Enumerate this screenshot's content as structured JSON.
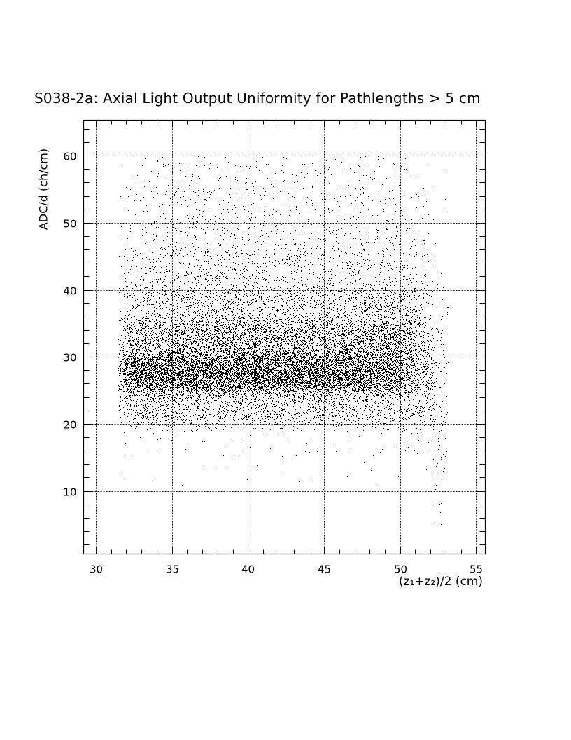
{
  "chart_data": {
    "type": "scatter",
    "title": "S038-2a: Axial Light Output Uniformity for Pathlengths > 5 cm",
    "xlabel": "(z₁+z₂)/2 (cm)",
    "ylabel": "ADC/d (ch/cm)",
    "xlim": [
      29.2,
      55.6
    ],
    "ylim": [
      0.6,
      65.3
    ],
    "xticks": [
      30,
      35,
      40,
      45,
      50,
      55
    ],
    "yticks": [
      10,
      20,
      30,
      40,
      50,
      60
    ],
    "x_minor_step": 1,
    "y_minor_step": 2,
    "grid": true,
    "legend": "none",
    "marker_color": "#000000",
    "density": {
      "description_of_bins": "approximate point counts per (x,y) bin",
      "x_bin_edges": [
        31,
        32,
        33,
        34,
        35,
        36,
        37,
        38,
        39,
        40,
        41,
        42,
        43,
        44,
        45,
        46,
        47,
        48,
        49,
        50,
        51,
        52,
        53
      ],
      "y_bin_edges": [
        5,
        10,
        15,
        20,
        25,
        30,
        35,
        40,
        45,
        50,
        55,
        60
      ],
      "counts": [
        [
          0,
          1,
          3,
          60,
          220,
          80,
          30,
          10,
          5,
          3,
          1
        ],
        [
          0,
          1,
          5,
          180,
          650,
          250,
          90,
          40,
          20,
          12,
          6
        ],
        [
          0,
          1,
          4,
          160,
          700,
          280,
          120,
          55,
          30,
          18,
          10
        ],
        [
          0,
          1,
          4,
          150,
          700,
          290,
          125,
          60,
          35,
          22,
          14
        ],
        [
          0,
          1,
          4,
          150,
          700,
          300,
          130,
          62,
          35,
          22,
          15
        ],
        [
          0,
          1,
          4,
          140,
          690,
          310,
          135,
          65,
          38,
          24,
          16
        ],
        [
          0,
          1,
          4,
          140,
          700,
          320,
          140,
          70,
          40,
          26,
          18
        ],
        [
          0,
          1,
          4,
          140,
          710,
          330,
          145,
          72,
          42,
          26,
          18
        ],
        [
          0,
          1,
          4,
          130,
          700,
          340,
          150,
          70,
          40,
          25,
          16
        ],
        [
          0,
          1,
          4,
          140,
          700,
          330,
          140,
          65,
          38,
          24,
          15
        ],
        [
          0,
          1,
          4,
          150,
          700,
          310,
          130,
          60,
          35,
          22,
          14
        ],
        [
          0,
          1,
          4,
          150,
          700,
          300,
          125,
          58,
          34,
          20,
          13
        ],
        [
          0,
          1,
          4,
          150,
          700,
          300,
          125,
          58,
          34,
          20,
          13
        ],
        [
          0,
          1,
          4,
          150,
          690,
          300,
          125,
          58,
          34,
          20,
          14
        ],
        [
          0,
          1,
          4,
          150,
          680,
          310,
          130,
          60,
          35,
          22,
          14
        ],
        [
          0,
          1,
          4,
          140,
          650,
          320,
          135,
          62,
          35,
          22,
          14
        ],
        [
          0,
          1,
          4,
          140,
          620,
          330,
          140,
          62,
          35,
          22,
          14
        ],
        [
          0,
          1,
          5,
          135,
          580,
          340,
          145,
          62,
          34,
          20,
          13
        ],
        [
          0,
          1,
          5,
          130,
          550,
          350,
          150,
          60,
          32,
          18,
          12
        ],
        [
          0,
          1,
          6,
          120,
          350,
          300,
          120,
          50,
          25,
          12,
          8
        ],
        [
          0,
          2,
          15,
          110,
          220,
          160,
          60,
          30,
          15,
          8,
          5
        ],
        [
          8,
          25,
          40,
          50,
          60,
          35,
          20,
          10,
          5,
          3,
          2
        ]
      ]
    }
  }
}
